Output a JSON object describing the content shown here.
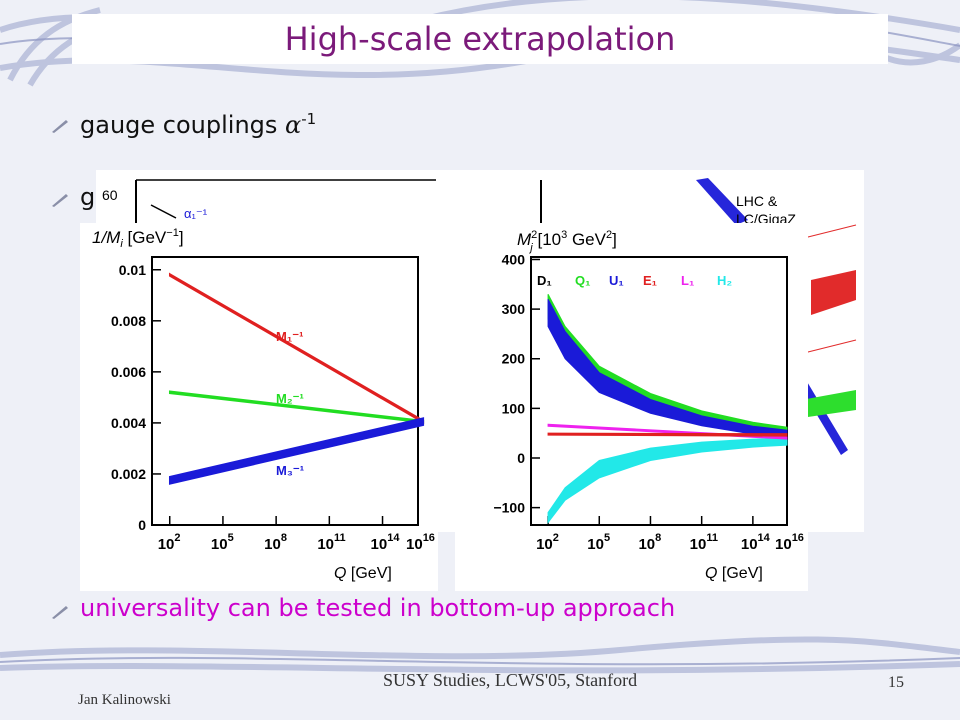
{
  "slide": {
    "title": "High-scale extrapolation",
    "bullets": [
      {
        "text": "gauge couplings ",
        "symbol": "α",
        "sup": "-1"
      },
      {
        "text": "g"
      },
      {
        "text": "universality can be tested in bottom-up approach"
      }
    ],
    "footer": {
      "author": "Jan Kalinowski",
      "conference": "SUSY Studies, LCWS'05, Stanford",
      "page": "15"
    },
    "colors": {
      "title": "#7b1a7a",
      "highlight": "#cc00cc"
    }
  },
  "behind_plot": {
    "tick": "60",
    "legend": "α₁⁻¹",
    "note_line1": "LHC  &",
    "note_line2": "LC/GigaZ"
  },
  "chart_data": [
    {
      "type": "line",
      "ylabel": "1/M",
      "ylabel_sub": "i",
      "ylabel_unit": "[GeV",
      "ylabel_unit_sup": "−1",
      "ylabel_unit_end": "]",
      "xlabel": "Q",
      "xlabel_unit": "[GeV]",
      "x_scale": "log",
      "xlim": [
        10,
        1e+16
      ],
      "ylim": [
        0,
        0.0105
      ],
      "x_tick_exponents": [
        2,
        5,
        8,
        11,
        14,
        16
      ],
      "y_ticks": [
        "0",
        "0.002",
        "0.004",
        "0.006",
        "0.008",
        "0.01"
      ],
      "y_tick_values": [
        0,
        0.002,
        0.004,
        0.006,
        0.008,
        0.01
      ],
      "series": [
        {
          "name": "M₁⁻¹",
          "color": "#e02020",
          "band": 4e-05,
          "x": [
            100,
            2e+16
          ],
          "y": [
            0.0098,
            0.00405
          ]
        },
        {
          "name": "M₂⁻¹",
          "color": "#22dd22",
          "band": 4e-05,
          "x": [
            100,
            2e+16
          ],
          "y": [
            0.0052,
            0.00405
          ]
        },
        {
          "name": "M₃⁻¹",
          "color": "#1a1ad8",
          "band": 0.00014,
          "x": [
            100,
            2e+16
          ],
          "y": [
            0.00175,
            0.00405
          ]
        }
      ]
    },
    {
      "type": "area",
      "ylabel": "M",
      "ylabel_sub": "j",
      "ylabel_sup": "2",
      "ylabel_unit": "[10",
      "ylabel_unit_sup": "3",
      "ylabel_unit_end": " GeV",
      "ylabel_unit_sup2": "2",
      "ylabel_unit_close": "]",
      "xlabel": "Q",
      "xlabel_unit": "[GeV]",
      "x_scale": "log",
      "xlim": [
        10,
        1e+16
      ],
      "ylim": [
        -135,
        405
      ],
      "x_tick_exponents": [
        2,
        5,
        8,
        11,
        14,
        16
      ],
      "y_ticks": [
        "400",
        "300",
        "200",
        "100",
        "0",
        "−100"
      ],
      "y_tick_values": [
        400,
        300,
        200,
        100,
        0,
        -100
      ],
      "series": [
        {
          "name": "D₁",
          "color": "#000000"
        },
        {
          "name": "Q₁",
          "color": "#22dd22",
          "x": [
            2,
            3,
            5,
            8,
            11,
            14,
            16
          ],
          "y_low": [
            280,
            215,
            148,
            105,
            78,
            58,
            50
          ],
          "y_high": [
            330,
            265,
            185,
            130,
            95,
            72,
            62
          ]
        },
        {
          "name": "U₁",
          "color": "#1a1ad8",
          "x": [
            2,
            3,
            5,
            8,
            11,
            14,
            16
          ],
          "y_low": [
            265,
            200,
            132,
            90,
            65,
            48,
            42
          ],
          "y_high": [
            320,
            255,
            172,
            118,
            85,
            64,
            56
          ]
        },
        {
          "name": "E₁",
          "color": "#e02020",
          "x": [
            2,
            16
          ],
          "y_low": [
            46,
            44
          ],
          "y_high": [
            50,
            49
          ]
        },
        {
          "name": "L₁",
          "color": "#ee22ee",
          "x": [
            2,
            16
          ],
          "y_low": [
            64,
            38
          ],
          "y_high": [
            68,
            42
          ]
        },
        {
          "name": "H₂",
          "color": "#22e8e8",
          "x": [
            2,
            3,
            5,
            8,
            11,
            14,
            16
          ],
          "y_low": [
            -130,
            -85,
            -40,
            -5,
            12,
            22,
            26
          ],
          "y_high": [
            -110,
            -60,
            -5,
            20,
            32,
            38,
            40
          ]
        }
      ]
    }
  ]
}
